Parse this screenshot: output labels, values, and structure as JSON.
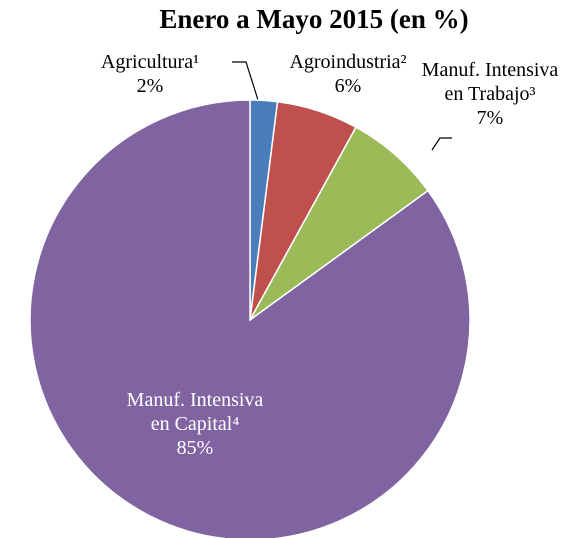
{
  "chart_data": {
    "type": "pie",
    "title": "Enero a Mayo 2015 (en %)",
    "categories": [
      "Agricultura¹",
      "Agroindustria²",
      "Manuf. Intensiva en Trabajo³",
      "Manuf. Intensiva en Capital⁴"
    ],
    "values": [
      2,
      6,
      7,
      85
    ],
    "value_labels": [
      "2%",
      "6%",
      "7%",
      "85%"
    ],
    "colors": [
      "#4a7ebb",
      "#c0504d",
      "#9bbb59",
      "#8064a2"
    ]
  }
}
